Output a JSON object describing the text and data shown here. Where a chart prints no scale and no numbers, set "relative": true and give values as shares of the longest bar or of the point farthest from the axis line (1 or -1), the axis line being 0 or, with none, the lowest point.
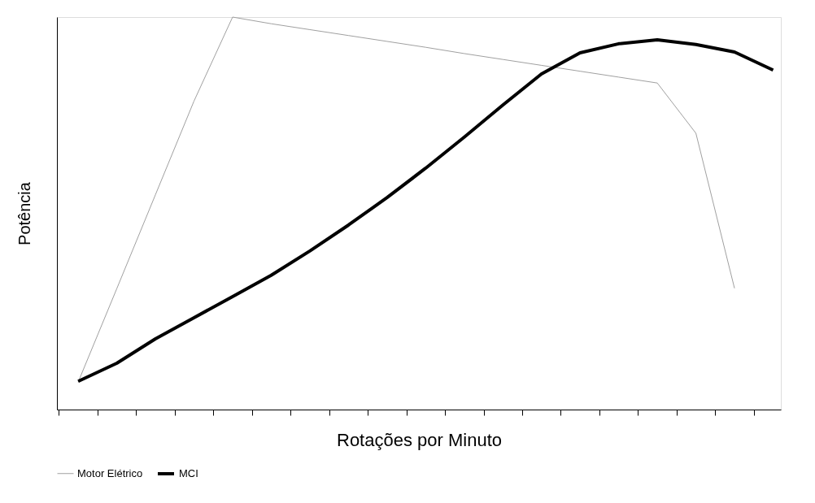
{
  "chart_data": {
    "type": "line",
    "relative": true,
    "xlabel": "Rotações por Minuto",
    "ylabel": "Potência",
    "tick_labels": false,
    "legend": "bottom",
    "grid": false,
    "marker": "none",
    "line_style": "solid",
    "categories": [
      null,
      null,
      null,
      null,
      null,
      null,
      null,
      null,
      null,
      null,
      null,
      null,
      null,
      null,
      null,
      null,
      null,
      null,
      null
    ],
    "series": [
      {
        "name": "Motor Elétrico",
        "color": "#a0a0a0",
        "values": [
          0.07,
          0.308,
          0.547,
          0.786,
          1,
          0.983,
          0.968,
          0.953,
          0.938,
          0.923,
          0.907,
          0.892,
          0.877,
          0.862,
          0.847,
          0.832,
          0.704,
          0.309,
          null
        ]
      },
      {
        "name": "MCI",
        "color": "#000000",
        "values": [
          0.072,
          0.118,
          0.18,
          0.234,
          0.288,
          0.342,
          0.404,
          0.47,
          0.54,
          0.615,
          0.694,
          0.776,
          0.855,
          0.909,
          0.932,
          0.942,
          0.93,
          0.911,
          0.865
        ]
      }
    ]
  }
}
